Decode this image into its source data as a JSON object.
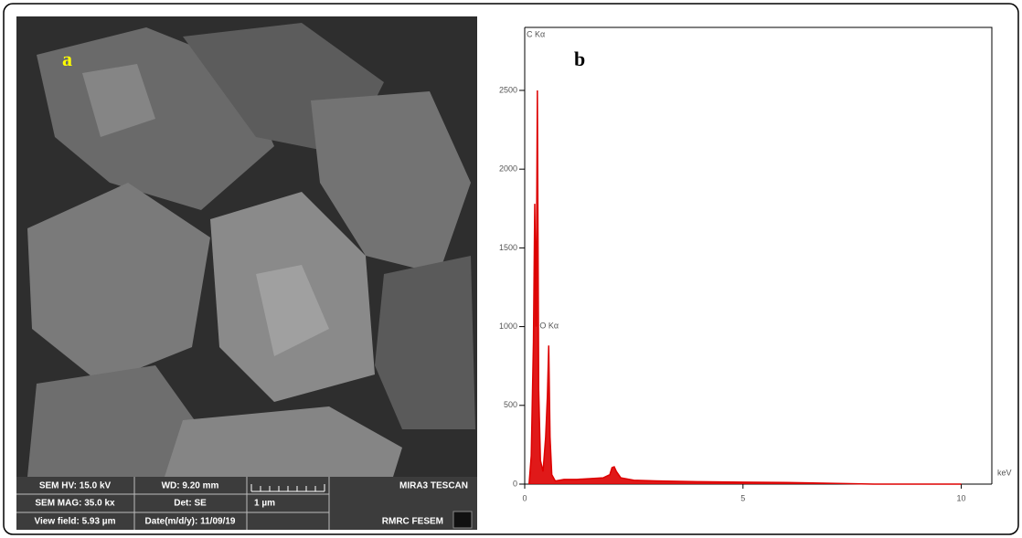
{
  "panel_a": {
    "label": "a",
    "info_bar": {
      "hv": "SEM HV: 15.0 kV",
      "wd": "WD: 9.20 mm",
      "maker": "MIRA3 TESCAN",
      "mag": "SEM MAG: 35.0 kx",
      "det": "Det: SE",
      "scale": "1 µm",
      "field": "View field: 5.93 µm",
      "date": "Date(m/d/y): 11/09/19",
      "lab": "RMRC  FESEM"
    }
  },
  "chart_data": {
    "type": "area",
    "label": "b",
    "x_label": "keV",
    "color": "#dd0000",
    "x": [
      0.1,
      0.15,
      0.2,
      0.23,
      0.26,
      0.29,
      0.32,
      0.36,
      0.42,
      0.48,
      0.52,
      0.55,
      0.58,
      0.62,
      0.7,
      0.9,
      1.2,
      1.5,
      1.8,
      1.95,
      2.0,
      2.05,
      2.1,
      2.2,
      2.5,
      3,
      4,
      5,
      6,
      7,
      8,
      10
    ],
    "values": [
      0,
      180,
      900,
      1780,
      1000,
      2500,
      600,
      150,
      80,
      300,
      560,
      880,
      300,
      60,
      20,
      30,
      30,
      35,
      40,
      60,
      105,
      110,
      80,
      40,
      25,
      20,
      15,
      12,
      10,
      5,
      0,
      0
    ],
    "annotations": [
      {
        "text": "C Kα",
        "x": 0.0,
        "y": 2900
      },
      {
        "text": "O Kα",
        "x": 0.3,
        "y": 1050
      }
    ],
    "xlim": [
      0,
      10.7
    ],
    "ylim": [
      0,
      2900
    ],
    "xticks": [
      0,
      5,
      10
    ],
    "yticks": [
      0,
      500,
      1000,
      1500,
      2000,
      2500
    ]
  }
}
